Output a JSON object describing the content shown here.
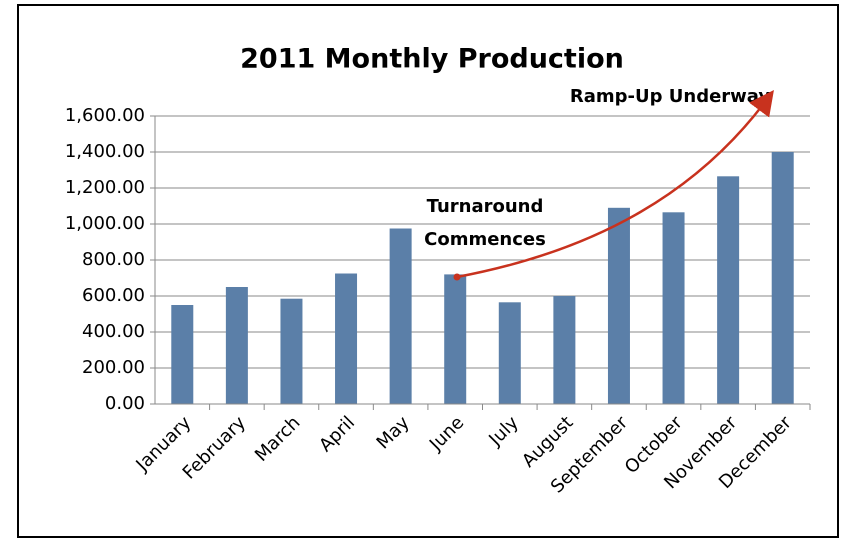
{
  "chart_data": {
    "type": "bar",
    "title": "2011 Monthly Production",
    "categories": [
      "January",
      "February",
      "March",
      "April",
      "May",
      "June",
      "July",
      "August",
      "September",
      "October",
      "November",
      "December"
    ],
    "values": [
      550,
      650,
      585,
      725,
      975,
      720,
      565,
      600,
      1090,
      1065,
      1265,
      1400
    ],
    "color": "#5b7fa8",
    "ylim": [
      0,
      1600
    ],
    "yticks": [
      {
        "value": 0,
        "label": "0.00"
      },
      {
        "value": 200,
        "label": "200.00"
      },
      {
        "value": 400,
        "label": "400.00"
      },
      {
        "value": 600,
        "label": "600.00"
      },
      {
        "value": 800,
        "label": "800.00"
      },
      {
        "value": 1000,
        "label": "1,000.00"
      },
      {
        "value": 1200,
        "label": "1,200.00"
      },
      {
        "value": 1400,
        "label": "1,400.00"
      },
      {
        "value": 1600,
        "label": "1,600.00"
      }
    ],
    "grid": true,
    "annotations": [
      [
        "Ramp-Up Underway"
      ],
      [
        "Turnaround",
        "Commences"
      ]
    ]
  }
}
